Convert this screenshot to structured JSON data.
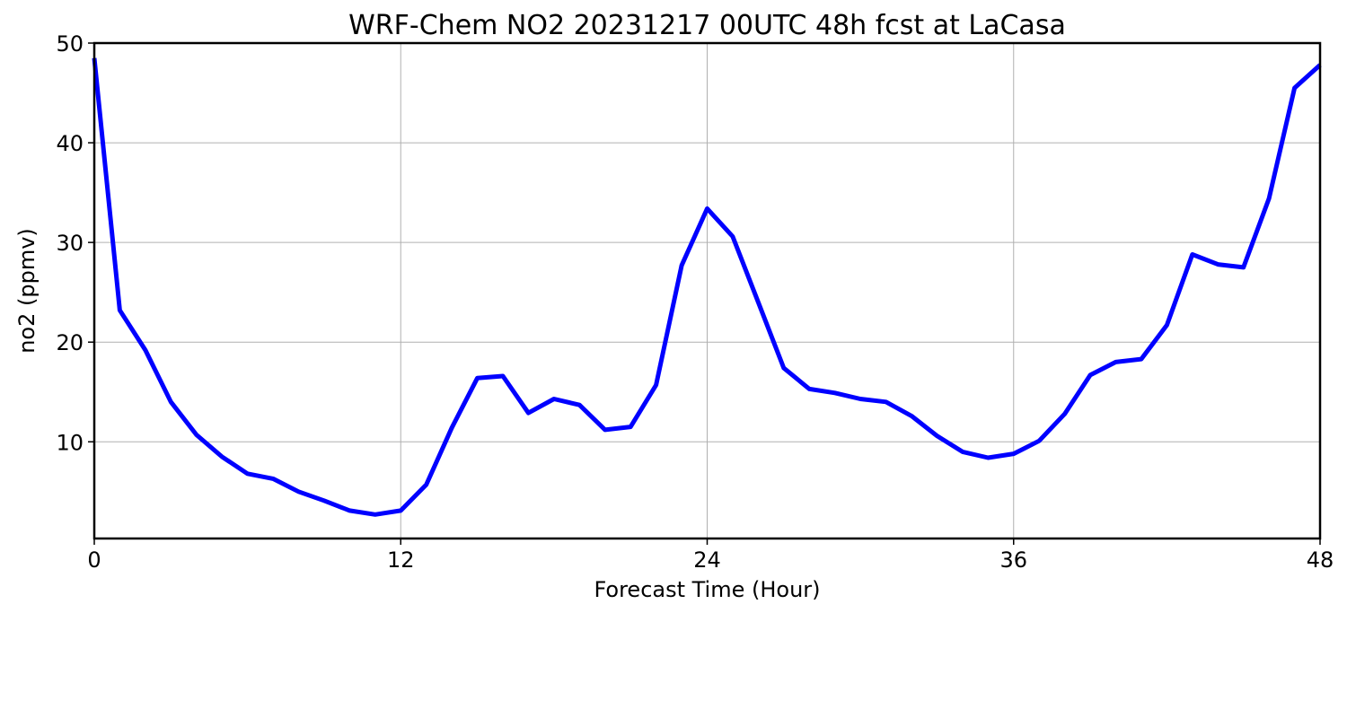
{
  "chart_data": {
    "type": "line",
    "title": "WRF-Chem NO2  20231217 00UTC 48h fcst at LaCasa",
    "xlabel": "Forecast Time (Hour)",
    "ylabel": "no2  (ppmv)",
    "xlim": [
      0,
      48
    ],
    "ylim": [
      0.3,
      50
    ],
    "xticks": [
      0,
      12,
      24,
      36,
      48
    ],
    "yticks": [
      10,
      20,
      30,
      40,
      50
    ],
    "grid": true,
    "series": [
      {
        "color": "#0000ff",
        "x": [
          0,
          1,
          2,
          3,
          4,
          5,
          6,
          7,
          8,
          9,
          10,
          11,
          12,
          13,
          14,
          15,
          16,
          17,
          18,
          19,
          20,
          21,
          22,
          23,
          24,
          25,
          26,
          27,
          28,
          29,
          30,
          31,
          32,
          33,
          34,
          35,
          36,
          37,
          38,
          39,
          40,
          41,
          42,
          43,
          44,
          45,
          46,
          47,
          48
        ],
        "values": [
          48.5,
          23.2,
          19.2,
          14.0,
          10.7,
          8.5,
          6.8,
          6.3,
          5.0,
          4.1,
          3.1,
          2.7,
          3.1,
          5.7,
          11.4,
          16.4,
          16.6,
          12.9,
          14.3,
          13.7,
          11.2,
          11.5,
          15.7,
          27.7,
          33.4,
          30.6,
          24.0,
          17.4,
          15.3,
          14.9,
          14.3,
          14.0,
          12.6,
          10.6,
          9.0,
          8.4,
          8.8,
          10.1,
          12.8,
          16.7,
          18.0,
          18.3,
          21.7,
          28.8,
          27.8,
          27.5,
          34.4,
          45.5,
          47.8
        ]
      }
    ]
  }
}
